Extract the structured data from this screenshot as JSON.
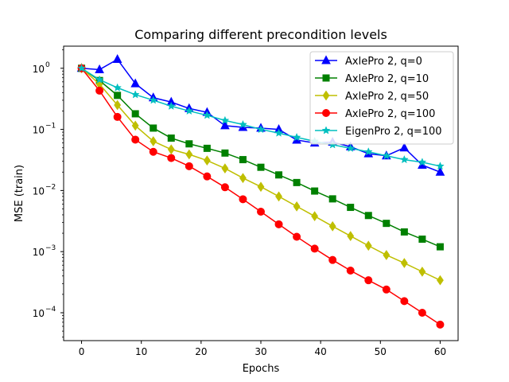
{
  "chart_data": {
    "type": "line",
    "title": "Comparing different precondition levels",
    "xlabel": "Epochs",
    "ylabel": "MSE (train)",
    "xlim": [
      -3,
      63
    ],
    "ylim": [
      3.5e-05,
      2.3
    ],
    "yscale": "log",
    "x_ticks": [
      0,
      10,
      20,
      30,
      40,
      50,
      60
    ],
    "x_tick_labels": [
      "0",
      "10",
      "20",
      "30",
      "40",
      "50",
      "60"
    ],
    "y_ticks": [
      0.0001,
      0.001,
      0.01,
      0.1,
      1
    ],
    "y_tick_labels": [
      "10",
      "10",
      "10",
      "10",
      "10"
    ],
    "y_tick_exponents": [
      "−4",
      "−3",
      "−2",
      "−1",
      "0"
    ],
    "grid": false,
    "legend_position": "upper right",
    "x": [
      0,
      3,
      6,
      9,
      12,
      15,
      18,
      21,
      24,
      27,
      30,
      33,
      36,
      39,
      42,
      45,
      48,
      51,
      54,
      57,
      60
    ],
    "series": [
      {
        "name": "AxlePro 2, q=0",
        "color": "#0000ff",
        "marker": "triangle",
        "values": [
          1.0,
          0.95,
          1.4,
          0.56,
          0.33,
          0.28,
          0.22,
          0.19,
          0.115,
          0.108,
          0.105,
          0.1,
          0.067,
          0.06,
          0.062,
          0.052,
          0.04,
          0.037,
          0.05,
          0.026,
          0.02
        ]
      },
      {
        "name": "AxlePro 2, q=10",
        "color": "#008000",
        "marker": "square",
        "values": [
          1.0,
          0.63,
          0.36,
          0.18,
          0.105,
          0.072,
          0.058,
          0.049,
          0.041,
          0.032,
          0.024,
          0.018,
          0.0135,
          0.0098,
          0.0073,
          0.0053,
          0.0039,
          0.0029,
          0.0021,
          0.0016,
          0.0012
        ]
      },
      {
        "name": "AxlePro 2, q=50",
        "color": "#bfbf00",
        "marker": "diamond",
        "values": [
          1.0,
          0.55,
          0.25,
          0.115,
          0.064,
          0.047,
          0.039,
          0.031,
          0.023,
          0.016,
          0.0115,
          0.008,
          0.0055,
          0.0038,
          0.0026,
          0.0018,
          0.00125,
          0.00088,
          0.00065,
          0.00047,
          0.00034
        ]
      },
      {
        "name": "AxlePro 2, q=100",
        "color": "#ff0000",
        "marker": "circle",
        "values": [
          1.0,
          0.43,
          0.16,
          0.068,
          0.043,
          0.034,
          0.025,
          0.017,
          0.0113,
          0.0072,
          0.0045,
          0.0028,
          0.00175,
          0.00112,
          0.00073,
          0.00049,
          0.00034,
          0.00024,
          0.000155,
          0.0001,
          6.4e-05
        ]
      },
      {
        "name": "EigenPro 2, q=100",
        "color": "#00bfbf",
        "marker": "star",
        "values": [
          1.0,
          0.65,
          0.48,
          0.37,
          0.3,
          0.24,
          0.2,
          0.17,
          0.14,
          0.12,
          0.1,
          0.087,
          0.074,
          0.064,
          0.056,
          0.049,
          0.043,
          0.037,
          0.032,
          0.029,
          0.025
        ]
      }
    ]
  }
}
